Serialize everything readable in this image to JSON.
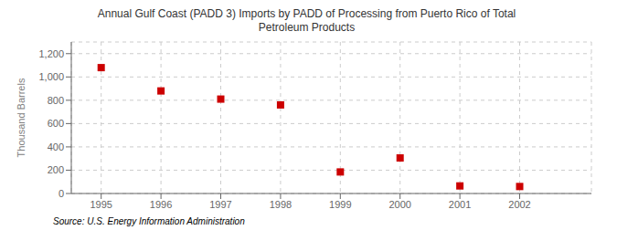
{
  "chart_data": {
    "type": "scatter",
    "title": "Annual Gulf Coast (PADD 3) Imports by PADD of Processing from Puerto Rico of Total\nPetroleum Products",
    "x": [
      1995,
      1996,
      1997,
      1998,
      1999,
      2000,
      2001,
      2002
    ],
    "values": [
      1080,
      880,
      810,
      760,
      185,
      305,
      65,
      60
    ],
    "ylabel": "Thousand Barrels",
    "annotations": [
      "Source: U.S. Energy Information Administration"
    ],
    "color": "#cc0000",
    "marker": "square",
    "xlim": [
      1994.5,
      2003.2
    ],
    "xticks": [
      1995,
      1996,
      1997,
      1998,
      1999,
      2000,
      2001,
      2002
    ],
    "ylim": [
      0,
      1300
    ],
    "yticks": [
      0,
      200,
      400,
      600,
      800,
      {
        "value": 1000,
        "label": "1,000"
      },
      {
        "value": 1200,
        "label": "1,200"
      }
    ],
    "grid": true
  }
}
